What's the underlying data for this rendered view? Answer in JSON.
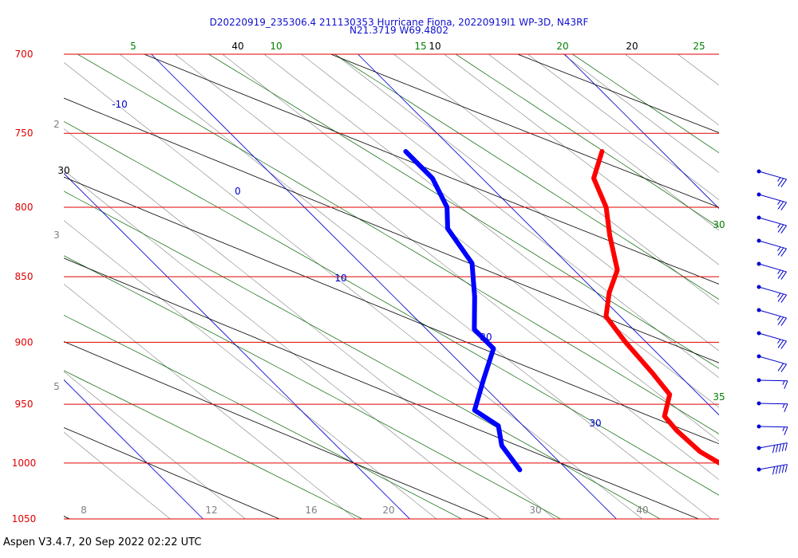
{
  "header": {
    "line1": "D20220919_235306.4 211130353 Hurricane Fiona, 20220919I1 WP-3D, N43RF",
    "line2": "N21.3719 W69.4802"
  },
  "footer": {
    "text": "Aspen V3.4.7, 20 Sep 2022  02:22 UTC"
  },
  "chart_data": {
    "type": "line",
    "title": "D20220919_235306.4 211130353 Hurricane Fiona, 20220919I1 WP-3D, N43RF",
    "subtitle": "N21.3719 W69.4802",
    "pressure_levels": [
      {
        "p": 700,
        "label": "700"
      },
      {
        "p": 750,
        "label": "750"
      },
      {
        "p": 800,
        "label": "800"
      },
      {
        "p": 850,
        "label": "850"
      },
      {
        "p": 900,
        "label": "900"
      },
      {
        "p": 950,
        "label": "950"
      },
      {
        "p": 1000,
        "label": "1000"
      },
      {
        "p": 1050,
        "label": "1050"
      }
    ],
    "bottom_ticks": [
      "8",
      "12",
      "16",
      "20",
      "30",
      "40"
    ],
    "isotherm_labels": [
      "-10",
      "0",
      "10",
      "20",
      "30"
    ],
    "dry_adiabat_labels": [
      "10",
      "20",
      "30",
      "40"
    ],
    "moist_adiabat_labels": [
      "5",
      "10",
      "15",
      "20",
      "25",
      "30",
      "35"
    ],
    "mixing_ratio_labels": [
      "2",
      "3",
      "5"
    ],
    "series": [
      {
        "name": "",
        "color": "#ff0000",
        "points": [
          [
            762,
            27.1
          ],
          [
            780,
            25.4
          ],
          [
            800,
            24.6
          ],
          [
            820,
            23.4
          ],
          [
            845,
            22.1
          ],
          [
            862,
            20.6
          ],
          [
            880,
            19.3
          ],
          [
            900,
            19.0
          ],
          [
            925,
            18.8
          ],
          [
            942,
            18.6
          ],
          [
            960,
            17.3
          ],
          [
            972,
            17.2
          ],
          [
            990,
            17.3
          ],
          [
            1008,
            18.0
          ]
        ]
      },
      {
        "name": "",
        "color": "#0000ff",
        "points": [
          [
            762,
            17.6
          ],
          [
            780,
            17.6
          ],
          [
            800,
            16.9
          ],
          [
            815,
            15.9
          ],
          [
            840,
            15.4
          ],
          [
            865,
            13.9
          ],
          [
            890,
            12.3
          ],
          [
            905,
            12.3
          ],
          [
            930,
            10.3
          ],
          [
            955,
            8.4
          ],
          [
            968,
            8.8
          ],
          [
            985,
            8.0
          ],
          [
            1006,
            7.7
          ]
        ]
      }
    ],
    "wind_barbs": [
      {
        "speed": 25
      },
      {
        "speed": 25
      },
      {
        "speed": 25
      },
      {
        "speed": 25
      },
      {
        "speed": 25
      },
      {
        "speed": 25
      },
      {
        "speed": 25
      },
      {
        "speed": 25
      },
      {
        "speed": 20
      },
      {
        "speed": 15
      },
      {
        "speed": 15
      },
      {
        "speed": 15
      },
      {
        "speed": 50
      },
      {
        "speed": 50
      }
    ],
    "colors": {
      "isobar": "#e00000",
      "isotherm": "#0000cc",
      "dry_adiabat": "#000000",
      "moist_adiabat": "#006400",
      "mixing_ratio": "#808080",
      "pressure_label": "#e00000"
    }
  }
}
